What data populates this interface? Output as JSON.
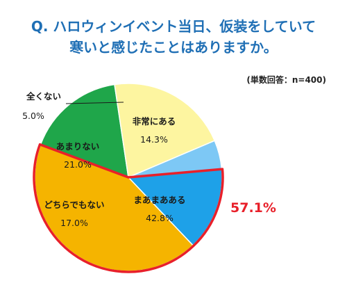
{
  "title": {
    "line1": "Q. ハロウィンイベント当日、仮装をしていて",
    "line2": "寒いと感じたことはありますか。"
  },
  "note": "(単数回答：n=400)",
  "highlight_text": "57.1%",
  "chart_data": {
    "type": "pie",
    "start_angle_deg": -5,
    "direction": "clockwise",
    "categories": [
      "非常にある",
      "まあまあある",
      "どちらでもない",
      "あまりない",
      "全くない"
    ],
    "values": [
      14.3,
      42.8,
      17.0,
      21.0,
      5.0
    ],
    "value_labels": [
      "14.3%",
      "42.8%",
      "17.0%",
      "21.0%",
      "5.0%"
    ],
    "colors": [
      "#1ea1e8",
      "#f5b400",
      "#1fa64a",
      "#fdf5a0",
      "#7dc8f5"
    ],
    "highlighted_slices": [
      "非常にある",
      "まあまあある"
    ],
    "highlight_total": 57.1,
    "highlight_color": "#e8202a"
  }
}
